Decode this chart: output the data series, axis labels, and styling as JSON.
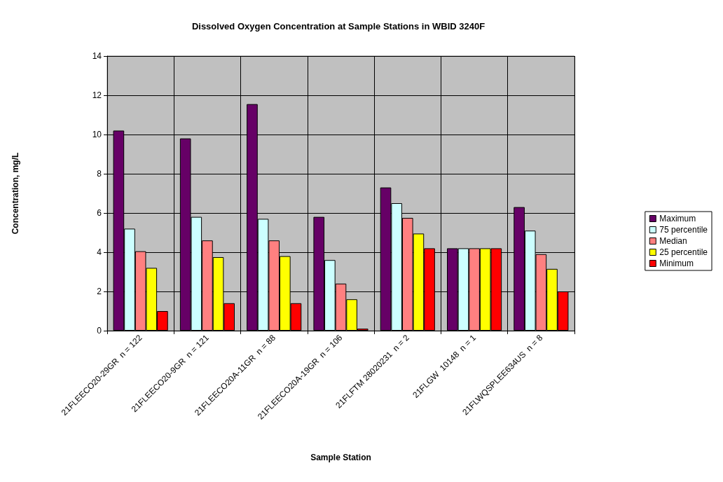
{
  "chart_data": {
    "type": "bar",
    "title": "Dissolved Oxygen Concentration at Sample Stations in WBID 3240F",
    "xlabel": "Sample Station",
    "ylabel": "Concentration, mg/L",
    "categories": [
      "21FLEECO20-29GR  n = 122",
      "21FLEECO20-9GR  n = 121",
      "21FLEECO20A-11GR  n = 88",
      "21FLEECO20A-19GR  n = 106",
      "21FLFTM 28020231  n = 2",
      "21FLGW  10148  n = 1",
      "21FLWQSPLEE634US  n = 8"
    ],
    "series": [
      {
        "name": "Maximum",
        "color": "#660066",
        "values": [
          10.2,
          9.8,
          11.55,
          5.8,
          7.3,
          4.2,
          6.3
        ]
      },
      {
        "name": "75 percentile",
        "color": "#ccffff",
        "values": [
          5.2,
          5.8,
          5.7,
          3.6,
          6.5,
          4.2,
          5.1
        ]
      },
      {
        "name": "Median",
        "color": "#ff8080",
        "values": [
          4.05,
          4.6,
          4.6,
          2.4,
          5.75,
          4.2,
          3.9
        ]
      },
      {
        "name": "25 percentile",
        "color": "#ffff00",
        "values": [
          3.2,
          3.75,
          3.8,
          1.6,
          4.95,
          4.2,
          3.15
        ]
      },
      {
        "name": "Minimum",
        "color": "#ff0000",
        "values": [
          1.0,
          1.4,
          1.4,
          0.1,
          4.2,
          4.2,
          2.0
        ]
      }
    ],
    "ylim": [
      0,
      14
    ],
    "yticks": [
      0,
      2,
      4,
      6,
      8,
      10,
      12,
      14
    ],
    "grid": true,
    "legend": "right"
  }
}
